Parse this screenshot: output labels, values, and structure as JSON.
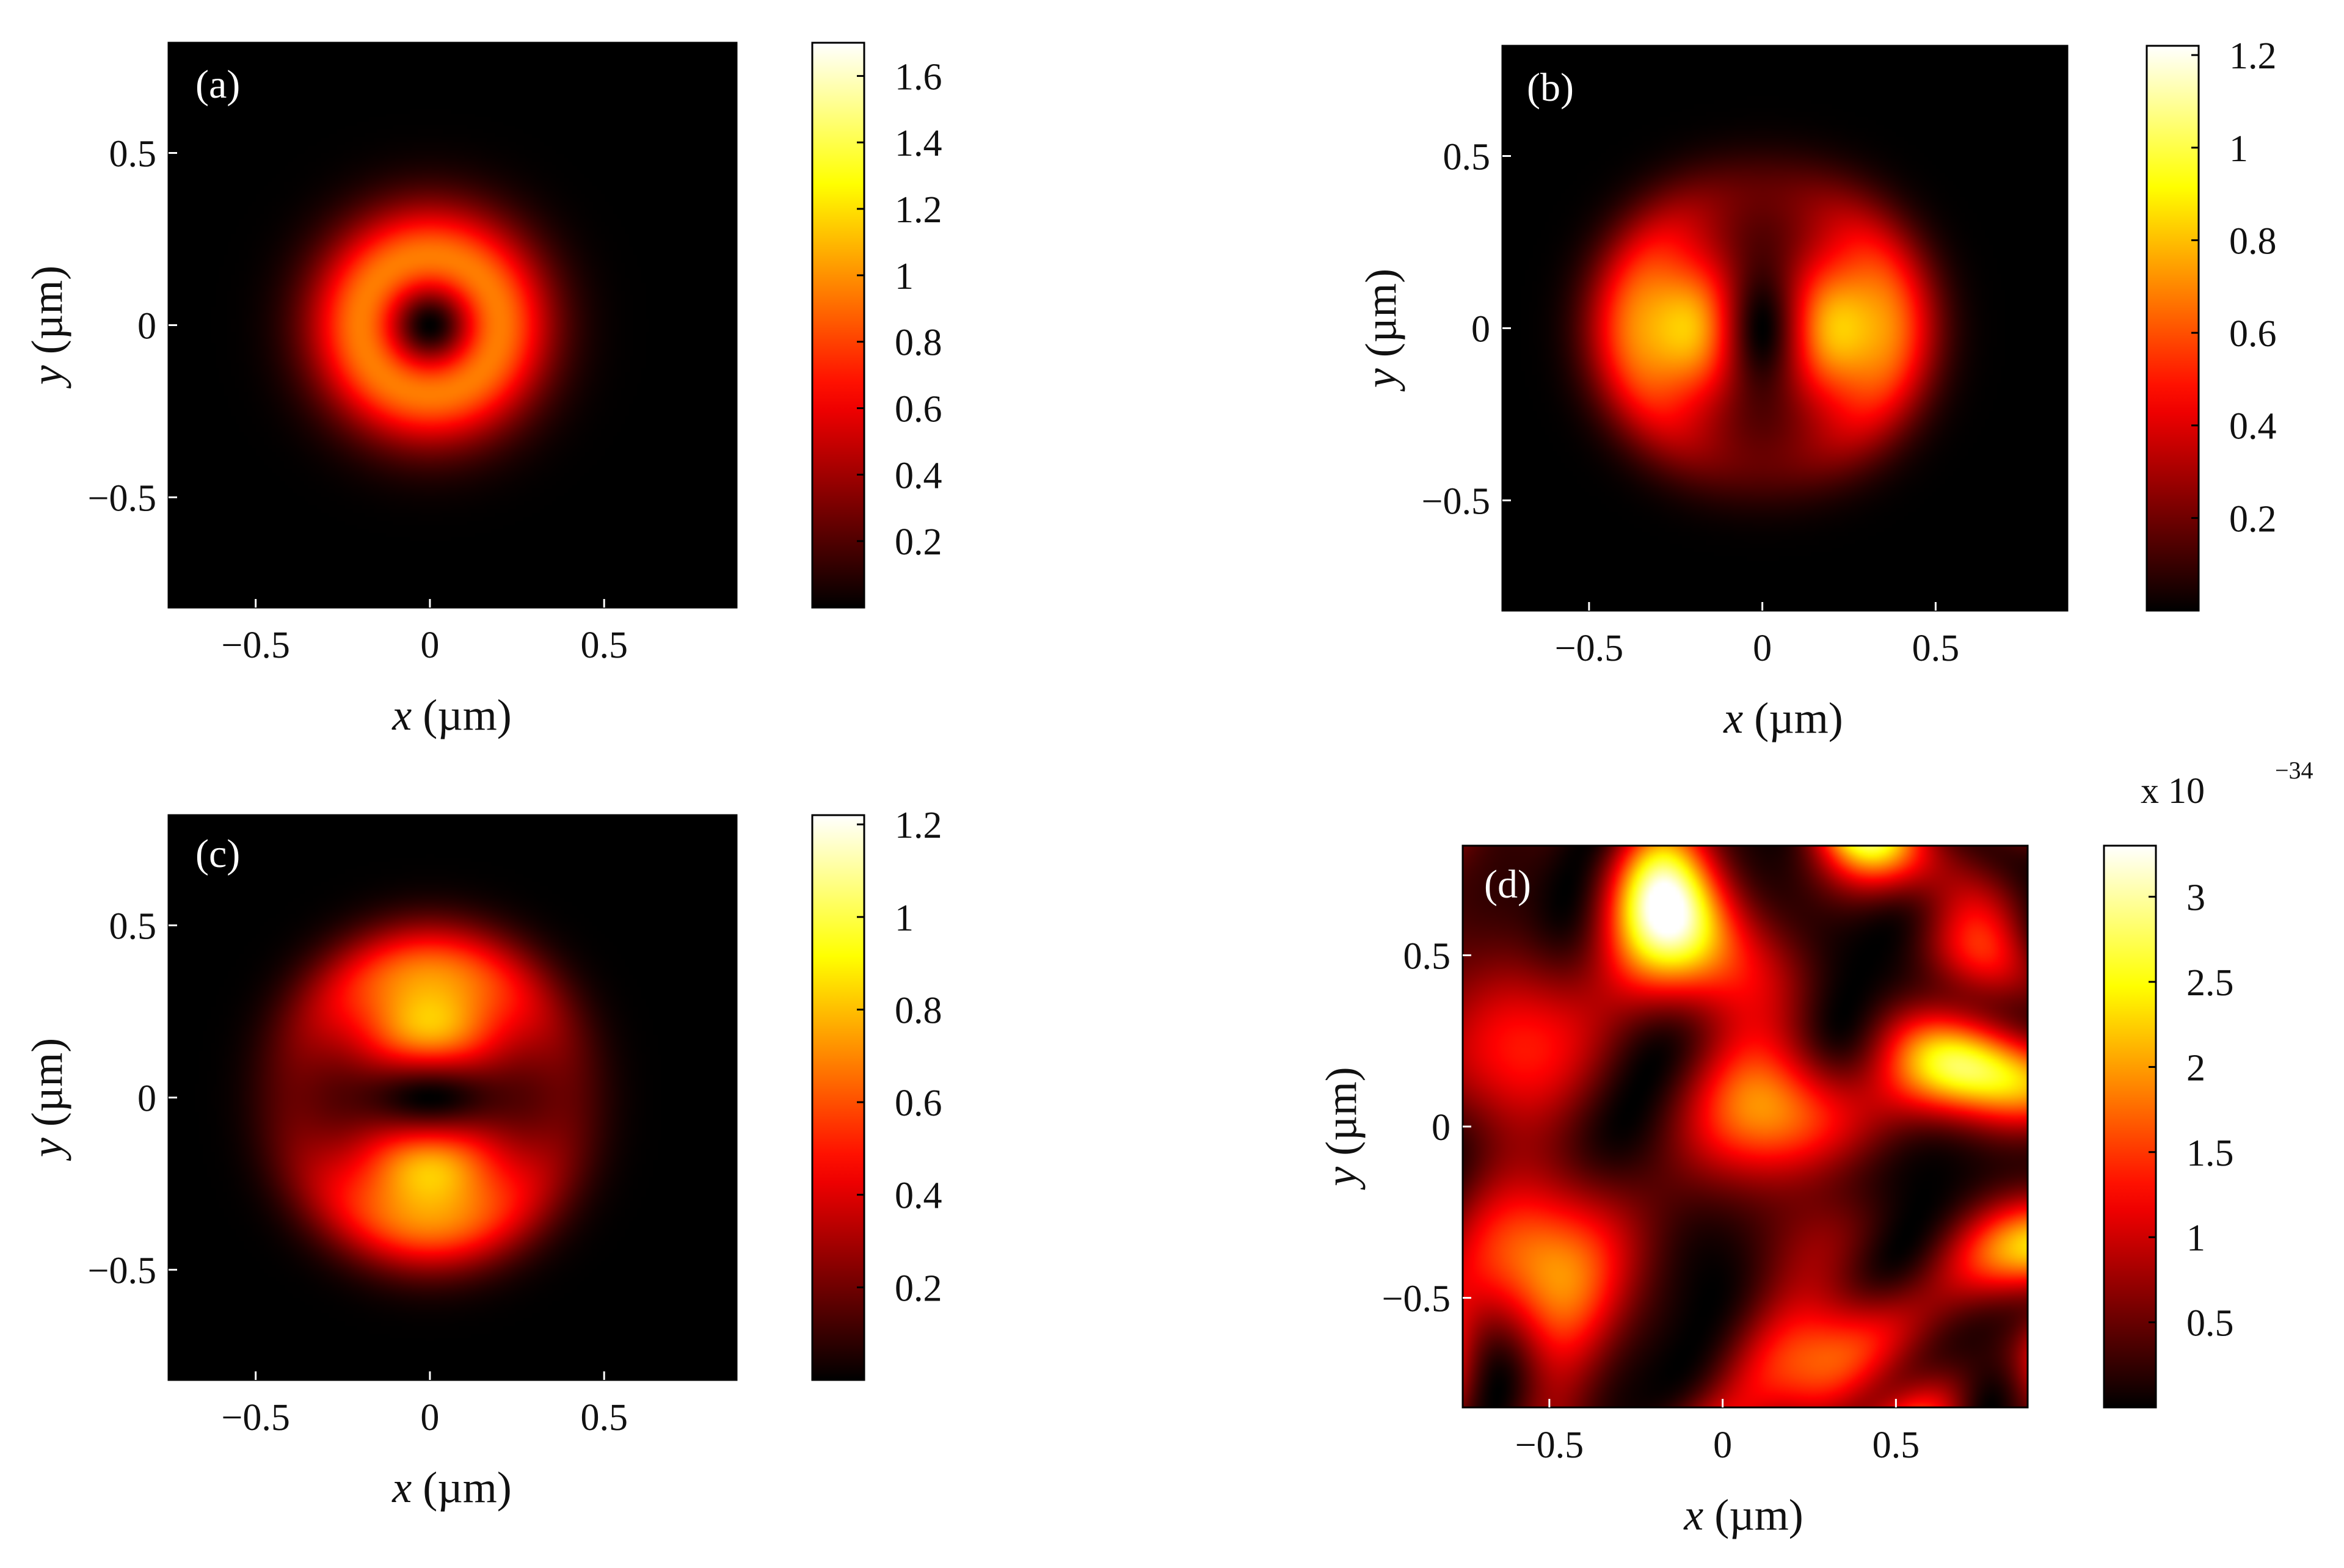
{
  "chart_data": [
    {
      "type": "heatmap",
      "panel_label": "(a)",
      "pattern": "ring",
      "xlabel_var": "x",
      "xlabel_unit": " (µm)",
      "ylabel_var": "y",
      "ylabel_unit": " (µm)",
      "xlim": [
        -0.75,
        0.88
      ],
      "ylim": [
        -0.82,
        0.82
      ],
      "xticks": [
        -0.5,
        0,
        0.5
      ],
      "xtick_labels": [
        "−0.5",
        "0",
        "0.5"
      ],
      "yticks": [
        -0.5,
        0,
        0.5
      ],
      "ytick_labels": [
        "−0.5",
        "0",
        "0.5"
      ],
      "colorbar": {
        "min": 0,
        "max": 1.7,
        "ticks": [
          0.2,
          0.4,
          0.6,
          0.8,
          1,
          1.2,
          1.4,
          1.6
        ],
        "tick_labels": [
          "0.2",
          "0.4",
          "0.6",
          "0.8",
          "1",
          "1.2",
          "1.4",
          "1.6"
        ],
        "exponent_label": ""
      }
    },
    {
      "type": "heatmap",
      "panel_label": "(b)",
      "pattern": "horizontal_lobes",
      "xlabel_var": "x",
      "xlabel_unit": " (µm)",
      "ylabel_var": "y",
      "ylabel_unit": " (µm)",
      "xlim": [
        -0.75,
        0.88
      ],
      "ylim": [
        -0.82,
        0.82
      ],
      "xticks": [
        -0.5,
        0,
        0.5
      ],
      "xtick_labels": [
        "−0.5",
        "0",
        "0.5"
      ],
      "yticks": [
        -0.5,
        0,
        0.5
      ],
      "ytick_labels": [
        "−0.5",
        "0",
        "0.5"
      ],
      "colorbar": {
        "min": 0,
        "max": 1.22,
        "ticks": [
          0.2,
          0.4,
          0.6,
          0.8,
          1,
          1.2
        ],
        "tick_labels": [
          "0.2",
          "0.4",
          "0.6",
          "0.8",
          "1",
          "1.2"
        ],
        "exponent_label": ""
      }
    },
    {
      "type": "heatmap",
      "panel_label": "(c)",
      "pattern": "vertical_lobes",
      "xlabel_var": "x",
      "xlabel_unit": " (µm)",
      "ylabel_var": "y",
      "ylabel_unit": " (µm)",
      "xlim": [
        -0.75,
        0.88
      ],
      "ylim": [
        -0.82,
        0.82
      ],
      "xticks": [
        -0.5,
        0,
        0.5
      ],
      "xtick_labels": [
        "−0.5",
        "0",
        "0.5"
      ],
      "yticks": [
        -0.5,
        0,
        0.5
      ],
      "ytick_labels": [
        "−0.5",
        "0",
        "0.5"
      ],
      "colorbar": {
        "min": 0,
        "max": 1.22,
        "ticks": [
          0.2,
          0.4,
          0.6,
          0.8,
          1,
          1.2
        ],
        "tick_labels": [
          "0.2",
          "0.4",
          "0.6",
          "0.8",
          "1",
          "1.2"
        ],
        "exponent_label": ""
      }
    },
    {
      "type": "heatmap",
      "panel_label": "(d)",
      "pattern": "noise",
      "xlabel_var": "x",
      "xlabel_unit": " (µm)",
      "ylabel_var": "y",
      "ylabel_unit": " (µm)",
      "xlim": [
        -0.75,
        0.88
      ],
      "ylim": [
        -0.82,
        0.82
      ],
      "xticks": [
        -0.5,
        0,
        0.5
      ],
      "xtick_labels": [
        "−0.5",
        "0",
        "0.5"
      ],
      "yticks": [
        -0.5,
        0,
        0.5
      ],
      "ytick_labels": [
        "−0.5",
        "0",
        "0.5"
      ],
      "colorbar": {
        "min": 0,
        "max": 3.3,
        "ticks": [
          0.5,
          1,
          1.5,
          2,
          2.5,
          3
        ],
        "tick_labels": [
          "0.5",
          "1",
          "1.5",
          "2",
          "2.5",
          "3"
        ],
        "exponent_label": "x 10",
        "exponent_power": "−34"
      }
    }
  ]
}
